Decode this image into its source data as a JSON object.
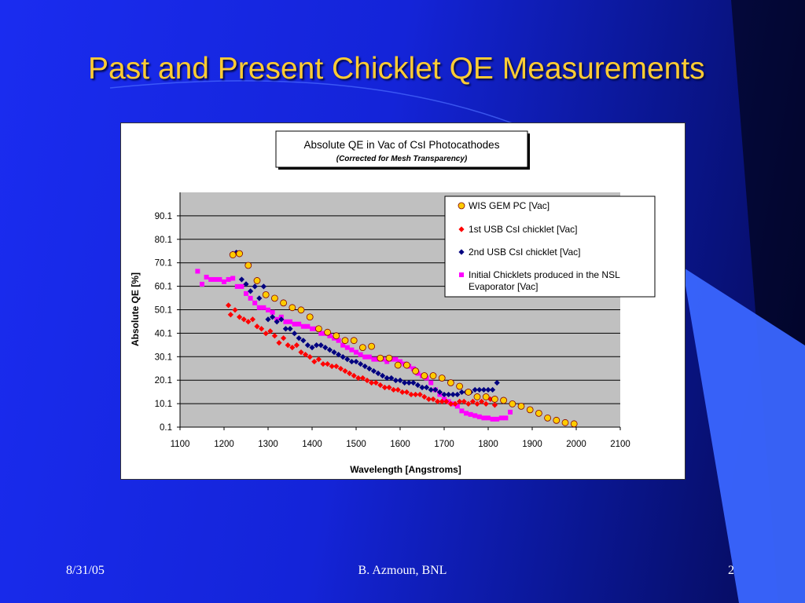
{
  "slide": {
    "title": "Past and Present Chicklet QE Measurements",
    "footer_date": "8/31/05",
    "footer_author": "B. Azmoun, BNL",
    "page_number": "2"
  },
  "colors": {
    "title": "#ffcc33",
    "plot_area": "#c0c0c0",
    "series_wis": "#ffcc00",
    "series_usb1": "#ff0000",
    "series_usb2": "#000080",
    "series_initial": "#ff00ff"
  },
  "chart_data": {
    "type": "scatter",
    "title": "Absolute QE in  Vac of CsI Photocathodes",
    "subtitle": "(Corrected for Mesh Transparency)",
    "xlabel": "Wavelength [Angstroms]",
    "ylabel": "Absolute QE [%]",
    "xlim": [
      1100,
      2100
    ],
    "ylim": [
      0.1,
      100.1
    ],
    "xticks": [
      "1100",
      "1200",
      "1300",
      "1400",
      "1500",
      "1600",
      "1700",
      "1800",
      "1900",
      "2000",
      "2100"
    ],
    "yticks": [
      "0.1",
      "10.1",
      "20.1",
      "30.1",
      "40.1",
      "50.1",
      "60.1",
      "70.1",
      "80.1",
      "90.1"
    ],
    "grid": "horizontal",
    "legend_position": "top-right",
    "series": [
      {
        "name": "WIS GEM PC [Vac]",
        "marker": "circle",
        "x": [
          1220,
          1235,
          1255,
          1275,
          1295,
          1315,
          1335,
          1355,
          1375,
          1395,
          1415,
          1435,
          1455,
          1475,
          1495,
          1515,
          1535,
          1555,
          1575,
          1595,
          1615,
          1635,
          1655,
          1675,
          1695,
          1715,
          1735,
          1755,
          1775,
          1795,
          1815,
          1835,
          1855,
          1875,
          1895,
          1915,
          1935,
          1955,
          1975,
          1995
        ],
        "y": [
          73.5,
          74,
          69,
          62.5,
          56.5,
          55,
          53,
          51,
          50,
          47,
          42,
          40.5,
          39,
          37,
          37,
          34,
          34.5,
          29.5,
          29.5,
          26.5,
          26.5,
          24,
          22,
          22,
          21,
          19,
          17.5,
          15,
          13,
          13,
          12,
          11.5,
          10,
          9,
          7.5,
          6,
          4,
          3,
          2,
          1.5
        ]
      },
      {
        "name": "1st USB CsI chicklet [Vac]",
        "marker": "diamond",
        "x": [
          1210,
          1215,
          1225,
          1235,
          1245,
          1255,
          1265,
          1275,
          1285,
          1295,
          1305,
          1315,
          1325,
          1335,
          1345,
          1355,
          1365,
          1375,
          1385,
          1395,
          1405,
          1415,
          1425,
          1435,
          1445,
          1455,
          1465,
          1475,
          1485,
          1495,
          1505,
          1515,
          1525,
          1535,
          1545,
          1555,
          1565,
          1575,
          1585,
          1595,
          1605,
          1615,
          1625,
          1635,
          1645,
          1655,
          1665,
          1675,
          1685,
          1695,
          1705,
          1715,
          1725,
          1735,
          1745,
          1755,
          1765,
          1775,
          1785,
          1795,
          1805,
          1815
        ],
        "y": [
          52,
          48,
          50,
          47,
          46,
          45,
          46,
          43,
          42,
          40,
          41,
          39,
          36,
          38,
          35,
          34,
          35,
          32,
          31,
          30,
          28,
          29,
          27,
          27,
          26,
          26,
          25,
          24,
          23,
          22,
          21,
          21,
          20,
          19,
          19,
          18,
          17,
          17,
          16,
          16,
          15,
          15,
          14,
          14,
          14,
          13,
          12,
          12,
          11,
          11,
          11,
          10,
          10,
          11,
          11,
          10,
          11,
          10,
          11,
          10,
          12,
          9.5
        ]
      },
      {
        "name": "2nd USB CsI chicklet [Vac]",
        "marker": "diamond",
        "x": [
          1220,
          1228,
          1240,
          1250,
          1260,
          1270,
          1280,
          1290,
          1300,
          1310,
          1320,
          1330,
          1340,
          1350,
          1360,
          1370,
          1380,
          1390,
          1400,
          1410,
          1420,
          1430,
          1440,
          1450,
          1460,
          1470,
          1480,
          1490,
          1500,
          1510,
          1520,
          1530,
          1540,
          1550,
          1560,
          1570,
          1580,
          1590,
          1600,
          1610,
          1620,
          1630,
          1640,
          1650,
          1660,
          1670,
          1680,
          1690,
          1700,
          1710,
          1720,
          1730,
          1740,
          1750,
          1760,
          1770,
          1780,
          1790,
          1800,
          1810,
          1820
        ],
        "y": [
          74,
          74.5,
          63,
          61,
          58,
          60,
          55,
          60,
          46,
          47,
          45,
          46,
          42,
          42,
          40,
          38,
          37,
          35,
          34,
          35,
          35,
          34,
          33,
          32,
          31,
          30,
          29,
          28,
          28,
          27,
          26,
          25,
          24,
          23,
          22,
          21,
          21,
          20,
          20,
          19,
          19,
          19,
          18,
          17,
          17,
          16,
          16,
          15,
          14,
          14,
          14,
          14,
          15,
          15,
          15,
          16,
          16,
          16,
          16,
          16,
          19
        ]
      },
      {
        "name": "Initial Chicklets produced in the NSL Evaporator [Vac]",
        "marker": "square",
        "x": [
          1140,
          1150,
          1160,
          1170,
          1180,
          1190,
          1200,
          1210,
          1220,
          1230,
          1240,
          1250,
          1260,
          1270,
          1280,
          1290,
          1300,
          1310,
          1320,
          1330,
          1340,
          1350,
          1360,
          1370,
          1380,
          1390,
          1400,
          1410,
          1420,
          1430,
          1440,
          1450,
          1460,
          1470,
          1480,
          1490,
          1500,
          1510,
          1520,
          1530,
          1540,
          1550,
          1560,
          1570,
          1580,
          1590,
          1600,
          1610,
          1620,
          1630,
          1640,
          1650,
          1660,
          1670,
          1680,
          1690,
          1700,
          1710,
          1720,
          1730,
          1740,
          1750,
          1760,
          1770,
          1780,
          1790,
          1800,
          1810,
          1820,
          1830,
          1840,
          1850
        ],
        "y": [
          66.5,
          61,
          64,
          63,
          63,
          63,
          62,
          63,
          63.5,
          60,
          60,
          57,
          55,
          53,
          51,
          51,
          50,
          49,
          46,
          47,
          45,
          45,
          44,
          44,
          43,
          43,
          42,
          42,
          40,
          40,
          39,
          38,
          37,
          35,
          34,
          33,
          32,
          31,
          30,
          30,
          29,
          29,
          29,
          28,
          29,
          29,
          28,
          27,
          26,
          25,
          23,
          22,
          21,
          19,
          16,
          14,
          12,
          11,
          10,
          9,
          7,
          6,
          5.5,
          5,
          4.5,
          4,
          4,
          3.5,
          3.5,
          4,
          4,
          6.5
        ]
      }
    ]
  }
}
